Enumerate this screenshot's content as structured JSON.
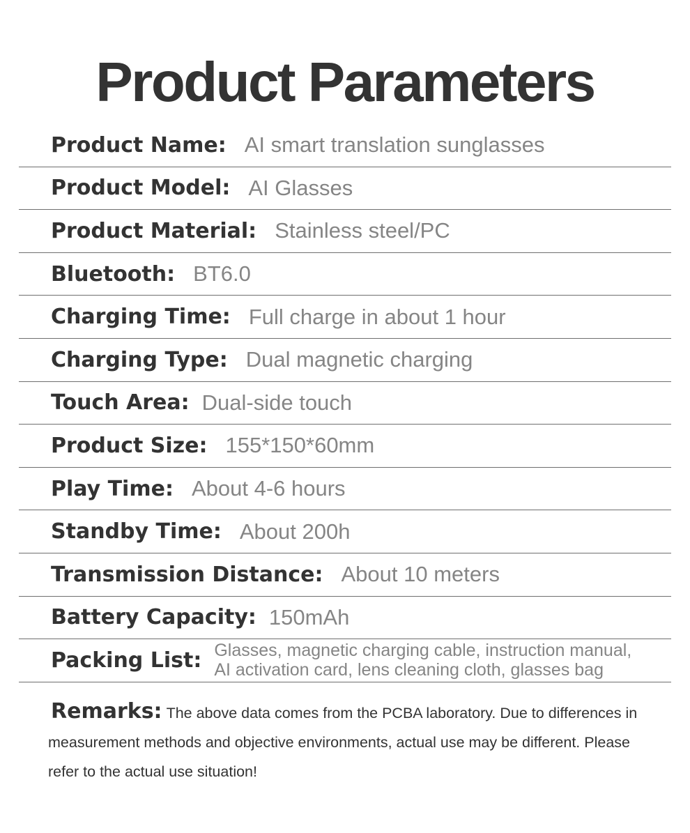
{
  "title": "Product Parameters",
  "rows": [
    {
      "label": "Product Name:",
      "value": "AI smart translation sunglasses"
    },
    {
      "label": "Product Model:",
      "value": "AI Glasses"
    },
    {
      "label": "Product Material:",
      "value": "Stainless steel/PC"
    },
    {
      "label": "Bluetooth:",
      "value": "BT6.0"
    },
    {
      "label": "Charging Time:",
      "value": "Full charge in about 1 hour"
    },
    {
      "label": "Charging Type:",
      "value": "Dual magnetic charging"
    },
    {
      "label": "Touch Area:",
      "value": "Dual-side touch"
    },
    {
      "label": "Product Size:",
      "value": "155*150*60mm"
    },
    {
      "label": "Play Time:",
      "value": "About 4-6 hours"
    },
    {
      "label": "Standby Time:",
      "value": "About 200h"
    },
    {
      "label": "Transmission Distance:",
      "value": "About 10 meters"
    },
    {
      "label": "Battery Capacity:",
      "value": "150mAh"
    },
    {
      "label": "Packing List:",
      "value_line1": "Glasses, magnetic charging cable, instruction manual,",
      "value_line2": "AI activation card, lens cleaning cloth, glasses bag"
    }
  ],
  "remarks": {
    "label": "Remarks:",
    "text": "The above data comes from the PCBA laboratory. Due to differences in measurement methods and objective environments, actual use may be different. Please refer to the actual use situation!"
  }
}
